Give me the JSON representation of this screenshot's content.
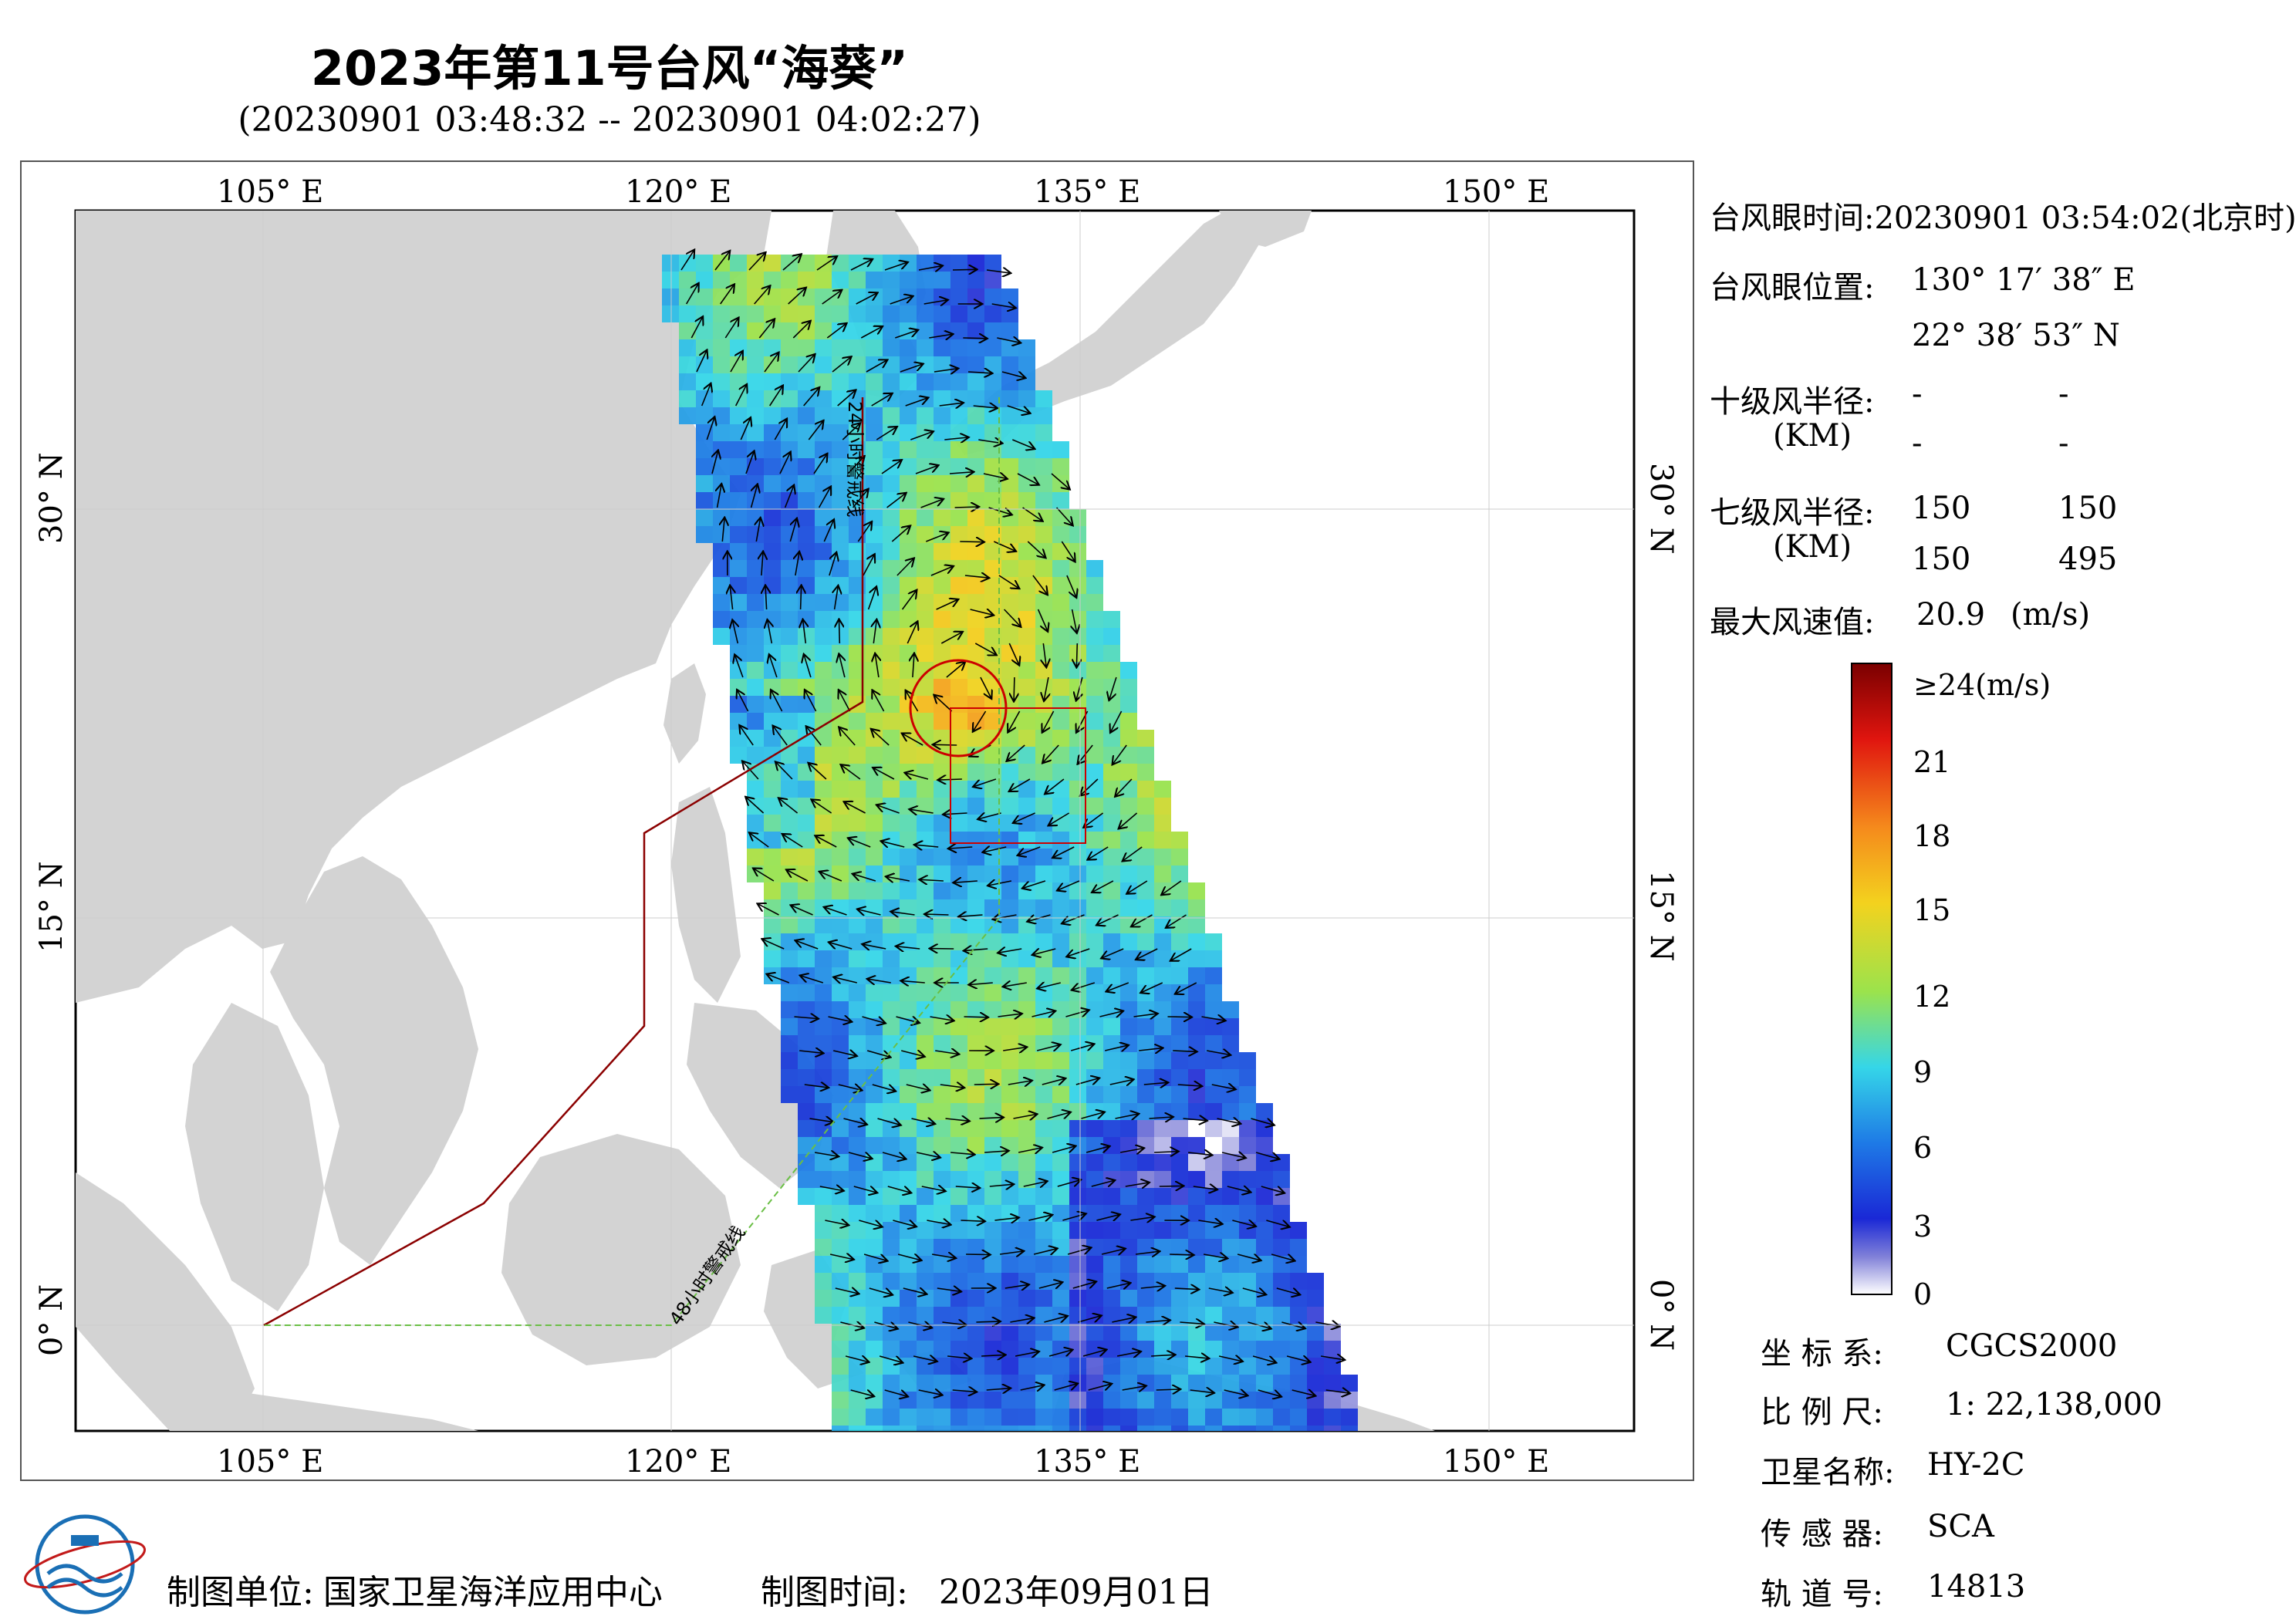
{
  "header": {
    "title": "2023年第11号台风“海葵”",
    "subtitle": "(20230901 03:48:32 -- 20230901 04:02:27)"
  },
  "map": {
    "top_ticks": [
      "105° E",
      "120° E",
      "135° E",
      "150° E"
    ],
    "bottom_ticks": [
      "105° E",
      "120° E",
      "135° E",
      "150° E"
    ],
    "left_ticks": [
      "30° N",
      "15° N",
      "0° N"
    ],
    "right_ticks": [
      "30° N",
      "15° N",
      "0° N"
    ],
    "warning_24h": "24小时警戒线",
    "warning_48h": "48小时警戒线",
    "colors": {
      "land": "#d3d3d3",
      "sea": "#ffffff",
      "warn24": "#8b0000",
      "warn48": "#6abf45"
    }
  },
  "info": {
    "eye_time_label": "台风眼时间:",
    "eye_time_value": "20230901 03:54:02(北京时)",
    "eye_pos_label": "台风眼位置:",
    "eye_lon": "130° 17′ 38″ E",
    "eye_lat": "22° 38′ 53″ N",
    "r10_label": "十级风半径:",
    "r10_unit": "(KM)",
    "r10_values": [
      "-",
      "-",
      "-",
      "-"
    ],
    "r7_label": "七级风半径:",
    "r7_unit": "(KM)",
    "r7_values": [
      "150",
      "150",
      "150",
      "495"
    ],
    "max_label": "最大风速值:",
    "max_value": "20.9",
    "max_unit": "(m/s)"
  },
  "colorbar": {
    "labels": [
      "≥24(m/s)",
      "21",
      "18",
      "15",
      "12",
      "9",
      "6",
      "3",
      "0"
    ],
    "stops": [
      "#7a0000",
      "#e0150f",
      "#f58a1c",
      "#f3d21e",
      "#9be34c",
      "#35d6e8",
      "#1e7ae6",
      "#1a28d6",
      "#ffffff"
    ]
  },
  "meta": {
    "crs_label": "坐 标 系:",
    "crs_value": "CGCS2000",
    "scale_label": "比 例 尺:",
    "scale_value": "1: 22,138,000",
    "sat_label": "卫星名称:",
    "sat_value": "HY-2C",
    "sensor_label": "传 感 器:",
    "sensor_value": "SCA",
    "orbit_label": "轨 道 号:",
    "orbit_value": "14813"
  },
  "footer": {
    "unit_label": "制图单位:",
    "unit_value": "国家卫星海洋应用中心",
    "time_label": "制图时间:",
    "time_value": "2023年09月01日"
  }
}
